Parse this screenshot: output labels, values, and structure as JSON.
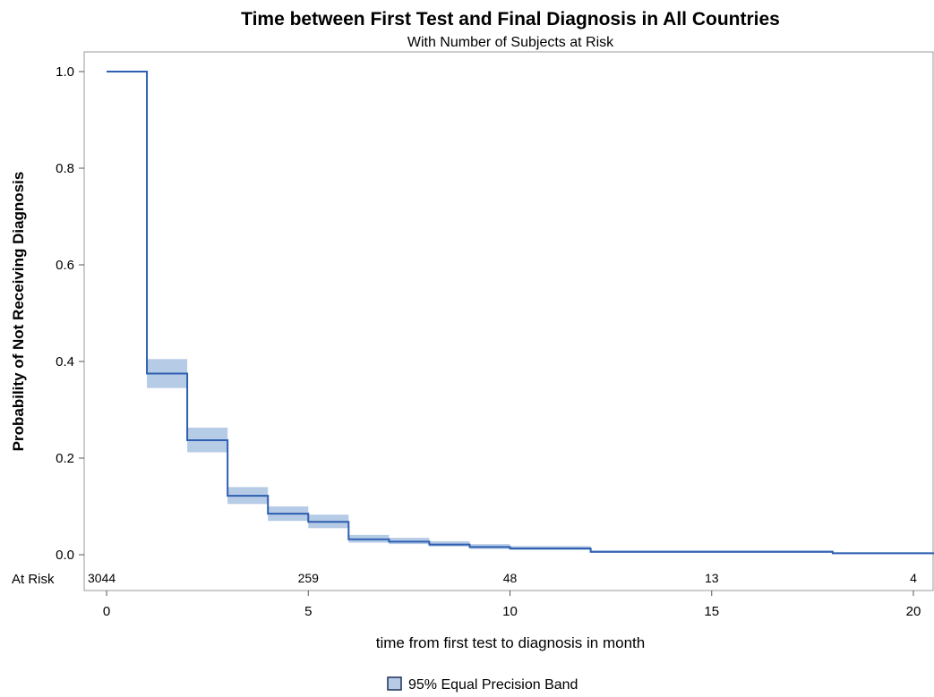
{
  "chart_data": {
    "type": "line",
    "title": "Time between First Test and Final Diagnosis in All Countries",
    "subtitle": "With Number of Subjects at Risk",
    "xlabel": "time from first test to diagnosis in month",
    "ylabel": "Probability of Not Receiving Diagnosis",
    "xlim": [
      -0.5,
      20.5
    ],
    "ylim": [
      0,
      1.0
    ],
    "x_ticks": [
      0,
      5,
      10,
      15,
      20
    ],
    "y_ticks": [
      "0.0",
      "0.2",
      "0.4",
      "0.6",
      "0.8",
      "1.0"
    ],
    "grid": false,
    "series": [
      {
        "step": "post",
        "color": "#2e5fb0",
        "x": [
          0,
          1,
          2,
          3,
          4,
          5,
          6,
          7,
          8,
          9,
          10,
          12,
          18,
          20.5
        ],
        "y": [
          1.0,
          0.375,
          0.237,
          0.122,
          0.085,
          0.068,
          0.032,
          0.027,
          0.021,
          0.016,
          0.013,
          0.006,
          0.003,
          0.001
        ]
      }
    ],
    "band": {
      "name": "95% Equal Precision Band",
      "fill": "#b6cbe6",
      "x_from": 1,
      "x": [
        1,
        2,
        3,
        4,
        5,
        6,
        7,
        8,
        9,
        10,
        12,
        18,
        20.5
      ],
      "lower": [
        0.345,
        0.212,
        0.105,
        0.07,
        0.055,
        0.025,
        0.022,
        0.017,
        0.012,
        0.01,
        0.004,
        0.002,
        0.0
      ],
      "upper": [
        0.405,
        0.263,
        0.14,
        0.1,
        0.083,
        0.041,
        0.035,
        0.028,
        0.022,
        0.018,
        0.009,
        0.005,
        0.003
      ]
    },
    "at_risk": {
      "label": "At Risk",
      "x": [
        0,
        5,
        10,
        15,
        20
      ],
      "values": [
        "3044",
        "259",
        "48",
        "13",
        "4"
      ]
    },
    "legend": {
      "position": "bottom-center",
      "entries": [
        "95% Equal Precision Band"
      ]
    }
  }
}
